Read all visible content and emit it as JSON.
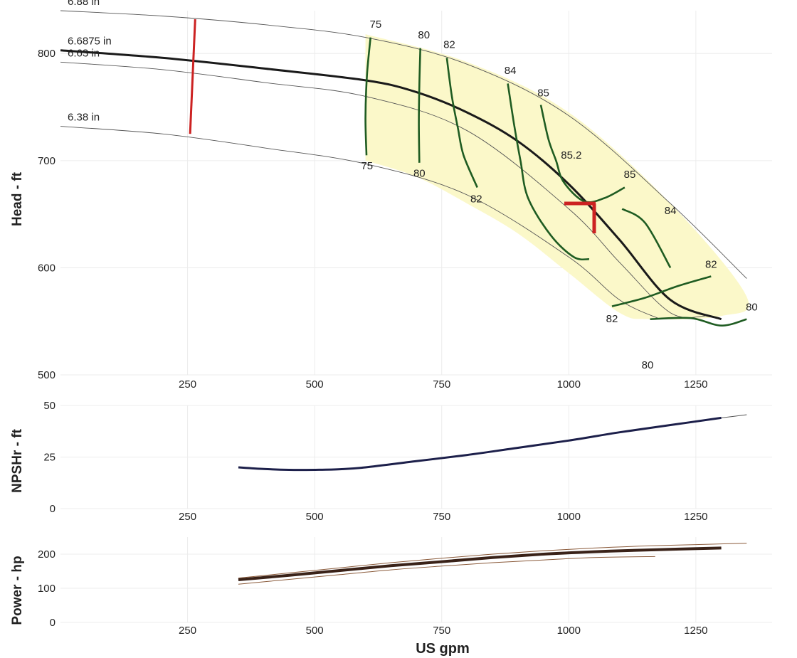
{
  "chart_data": {
    "type": "line",
    "title": "",
    "xlabel": "US gpm",
    "xlim": [
      0,
      1400
    ],
    "xticks": [
      250,
      500,
      750,
      1000,
      1250
    ],
    "colors": {
      "selected_curve": "#1a1a1a",
      "thin_curve": "#555555",
      "efficiency": "#1f5c22",
      "efficiency_fill": "#fbf8c9",
      "flow_limit": "#cc2222",
      "duty_point": "#cc2222",
      "npsh": "#1c1f4a",
      "power": "#3a2218",
      "power_thin": "#8a5a3a"
    },
    "panels": [
      {
        "name": "head",
        "ylabel": "Head - ft",
        "ylim": [
          500,
          840
        ],
        "yticks": [
          500,
          600,
          700,
          800
        ],
        "impeller_curves": [
          {
            "label": "6.88 in",
            "selected": false,
            "x": [
              0,
              200,
              400,
              600,
              800,
              1000,
              1200,
              1350
            ],
            "y": [
              840,
              835,
              827,
              815,
              790,
              742,
              660,
              590
            ]
          },
          {
            "label": "6.6875 in",
            "selected": true,
            "x": [
              0,
              200,
              400,
              600,
              700,
              800,
              900,
              1000,
              1100,
              1200,
              1300
            ],
            "y": [
              803,
              796,
              786,
              775,
              764,
              745,
              718,
              678,
              626,
              570,
              552
            ]
          },
          {
            "label": "6.63 in",
            "selected": false,
            "x": [
              0,
              200,
              400,
              600,
              800,
              1000,
              1100,
              1200,
              1270
            ],
            "y": [
              792,
              785,
              773,
              760,
              728,
              655,
              605,
              558,
              555
            ]
          },
          {
            "label": "6.38 in",
            "selected": false,
            "x": [
              0,
              200,
              400,
              600,
              800,
              1000,
              1100,
              1180
            ],
            "y": [
              732,
              725,
              712,
              697,
              668,
              610,
              570,
              552
            ]
          }
        ],
        "efficiency_region": {
          "x": [
            600,
            800,
            1000,
            1200,
            1350,
            1300,
            1160,
            1100,
            1000,
            900,
            800,
            700,
            600
          ],
          "y": [
            818,
            792,
            745,
            660,
            573,
            555,
            552,
            558,
            595,
            632,
            660,
            685,
            700
          ]
        },
        "efficiency_curves": [
          {
            "x": [
              610,
              603,
              600,
              602
            ],
            "y": [
              815,
              780,
              740,
              705
            ]
          },
          {
            "x": [
              708,
              706,
              705,
              706
            ],
            "y": [
              805,
              770,
              735,
              698
            ]
          },
          {
            "x": [
              760,
              770,
              782,
              793,
              820
            ],
            "y": [
              796,
              760,
              730,
              705,
              675
            ]
          },
          {
            "x": [
              880,
              892,
              905,
              920,
              965,
              1010,
              1040
            ],
            "y": [
              772,
              735,
              700,
              665,
              630,
              610,
              608
            ]
          },
          {
            "x": [
              945,
              960,
              975,
              990,
              1030,
              1070,
              1110
            ],
            "y": [
              752,
              720,
              700,
              680,
              662,
              665,
              675
            ]
          },
          {
            "x": [
              1105,
              1150,
              1200
            ],
            "y": [
              655,
              642,
              600
            ]
          },
          {
            "x": [
              1085,
              1150,
              1215,
              1280
            ],
            "y": [
              564,
              572,
              583,
              592
            ]
          },
          {
            "x": [
              1160,
              1240,
              1300,
              1350
            ],
            "y": [
              552,
              553,
              546,
              552
            ]
          }
        ],
        "efficiency_labels": [
          {
            "text": "75",
            "x": 620,
            "y": 824
          },
          {
            "text": "80",
            "x": 715,
            "y": 814
          },
          {
            "text": "82",
            "x": 765,
            "y": 805
          },
          {
            "text": "84",
            "x": 885,
            "y": 781
          },
          {
            "text": "85",
            "x": 950,
            "y": 760
          },
          {
            "text": "85.2",
            "x": 1005,
            "y": 702
          },
          {
            "text": "85",
            "x": 1120,
            "y": 684
          },
          {
            "text": "84",
            "x": 1200,
            "y": 650
          },
          {
            "text": "82",
            "x": 1280,
            "y": 600
          },
          {
            "text": "80",
            "x": 1360,
            "y": 560
          },
          {
            "text": "75",
            "x": 603,
            "y": 692
          },
          {
            "text": "80",
            "x": 706,
            "y": 685
          },
          {
            "text": "82",
            "x": 818,
            "y": 661
          },
          {
            "text": "82",
            "x": 1085,
            "y": 549
          },
          {
            "text": "80",
            "x": 1155,
            "y": 506
          }
        ],
        "flow_limit": {
          "x": [
            265,
            255
          ],
          "y": [
            832,
            725
          ]
        },
        "duty_point": {
          "x": 1050,
          "y": 660
        }
      },
      {
        "name": "npshr",
        "ylabel": "NPSHr - ft",
        "ylim": [
          0,
          50
        ],
        "yticks": [
          0,
          25,
          50
        ],
        "curves": [
          {
            "x": [
              350,
              400,
              450,
              500,
              550,
              600,
              700,
              800,
              900,
              1000,
              1100,
              1200,
              1300
            ],
            "y": [
              20,
              19.2,
              18.8,
              18.8,
              19.1,
              20,
              23,
              26,
              29.5,
              33,
              37,
              40.5,
              44
            ]
          }
        ],
        "extension": {
          "x": [
            1300,
            1350
          ],
          "y": [
            44,
            45.5
          ]
        }
      },
      {
        "name": "power",
        "ylabel": "Power - hp",
        "ylim": [
          0,
          250
        ],
        "yticks": [
          0,
          100,
          200
        ],
        "curves": [
          {
            "x": [
              350,
              450,
              550,
              650,
              750,
              850,
              950,
              1050,
              1150,
              1300
            ],
            "y": [
              125,
              138,
              152,
              166,
              178,
              190,
              200,
              207,
              212,
              218
            ]
          }
        ],
        "thin_curves": [
          {
            "x": [
              350,
              450,
              550,
              650,
              750,
              850,
              950,
              1050,
              1150,
              1250,
              1350
            ],
            "y": [
              130,
              145,
              160,
              175,
              188,
              200,
              210,
              218,
              224,
              228,
              232
            ]
          },
          {
            "x": [
              350,
              450,
              550,
              650,
              750,
              850,
              950,
              1050,
              1170
            ],
            "y": [
              112,
              126,
              140,
              154,
              165,
              175,
              183,
              190,
              193
            ]
          }
        ]
      }
    ]
  }
}
